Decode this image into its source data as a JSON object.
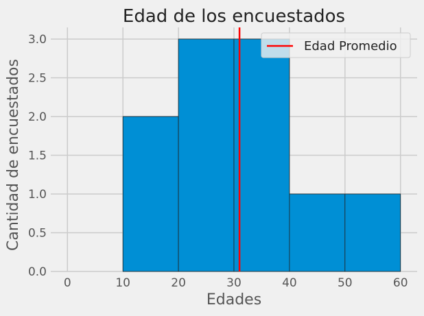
{
  "chart_data": {
    "type": "bar",
    "title": "Edad de los encuestados",
    "xlabel": "Edades",
    "ylabel": "Cantidad de encuestados",
    "xlim": [
      -3,
      63
    ],
    "ylim": [
      0,
      3.15
    ],
    "x_ticks": [
      "0",
      "10",
      "20",
      "30",
      "40",
      "50",
      "60"
    ],
    "y_ticks": [
      "0.0",
      "0.5",
      "1.0",
      "1.5",
      "2.0",
      "2.5",
      "3.0"
    ],
    "bins": [
      {
        "start": 10,
        "end": 20,
        "count": 2
      },
      {
        "start": 20,
        "end": 30,
        "count": 3
      },
      {
        "start": 30,
        "end": 40,
        "count": 3
      },
      {
        "start": 40,
        "end": 50,
        "count": 1
      },
      {
        "start": 50,
        "end": 60,
        "count": 1
      }
    ],
    "mean_line": {
      "x": 31,
      "label": "Edad Promedio",
      "color": "#ff0000"
    },
    "bar_color": "#008fd5",
    "grid": true,
    "legend_position": "upper right"
  }
}
